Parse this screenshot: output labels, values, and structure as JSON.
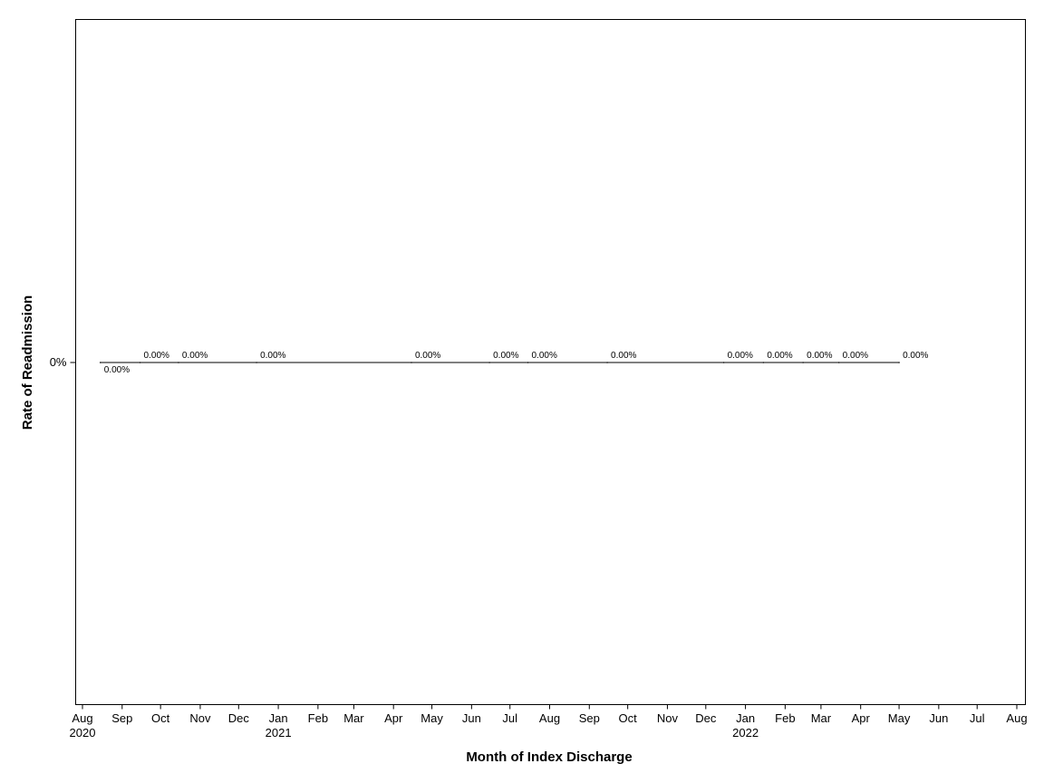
{
  "chart_data": {
    "type": "line",
    "title": "",
    "xlabel": "Month of Index Discharge",
    "ylabel": "Rate of Readmission",
    "x_tick_labels": [
      "Aug",
      "Sep",
      "Oct",
      "Nov",
      "Dec",
      "Jan",
      "Feb",
      "Mar",
      "Apr",
      "May",
      "Jun",
      "Jul",
      "Aug",
      "Sep",
      "Oct",
      "Nov",
      "Dec",
      "Jan",
      "Feb",
      "Mar",
      "Apr",
      "May",
      "Jun",
      "Jul",
      "Aug"
    ],
    "x_year_labels": [
      {
        "month": "2020-08",
        "label": "2020"
      },
      {
        "month": "2021-01",
        "label": "2021"
      },
      {
        "month": "2022-01",
        "label": "2022"
      }
    ],
    "xlim": [
      "2020-08",
      "2022-08"
    ],
    "y_ticks": [
      {
        "value": 0,
        "label": "0%"
      }
    ],
    "grid": false,
    "series": [
      {
        "points": [
          {
            "x": "2020-08-15",
            "y": 0,
            "label": "0.00%",
            "label_pos": "below"
          },
          {
            "x": "2020-09-15",
            "y": 0,
            "label": "0.00%",
            "label_pos": "above"
          },
          {
            "x": "2020-10-15",
            "y": 0,
            "label": "0.00%",
            "label_pos": "above"
          },
          {
            "x": "2020-12-15",
            "y": 0,
            "label": "0.00%",
            "label_pos": "above"
          },
          {
            "x": "2021-04-15",
            "y": 0,
            "label": "0.00%",
            "label_pos": "above"
          },
          {
            "x": "2021-06-15",
            "y": 0,
            "label": "0.00%",
            "label_pos": "above"
          },
          {
            "x": "2021-07-15",
            "y": 0,
            "label": "0.00%",
            "label_pos": "above"
          },
          {
            "x": "2021-09-15",
            "y": 0,
            "label": "0.00%",
            "label_pos": "above"
          },
          {
            "x": "2021-12-15",
            "y": 0,
            "label": "0.00%",
            "label_pos": "above"
          },
          {
            "x": "2022-01-15",
            "y": 0,
            "label": "0.00%",
            "label_pos": "above"
          },
          {
            "x": "2022-02-15",
            "y": 0,
            "label": "0.00%",
            "label_pos": "above"
          },
          {
            "x": "2022-03-15",
            "y": 0,
            "label": "0.00%",
            "label_pos": "above"
          },
          {
            "x": "2022-05-01",
            "y": 0,
            "label": "0.00%",
            "label_pos": "above"
          }
        ]
      }
    ]
  }
}
